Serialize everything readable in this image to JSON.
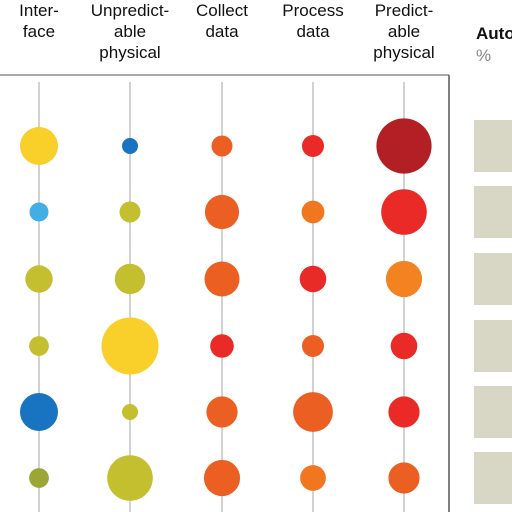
{
  "chart_data": {
    "type": "bubble-matrix",
    "columns": [
      {
        "label": "Inter-\nface"
      },
      {
        "label": "Unpredict-\nable\nphysical"
      },
      {
        "label": "Collect\ndata"
      },
      {
        "label": "Process\ndata"
      },
      {
        "label": "Predict-\nable\nphysical"
      }
    ],
    "rows": [
      {
        "size": [
          1.0,
          0.42,
          0.55,
          0.58,
          1.45
        ],
        "color": [
          "#F9CF2A",
          "#1874C1",
          "#EC5F22",
          "#E92A26",
          "#B22026"
        ]
      },
      {
        "size": [
          0.5,
          0.55,
          0.9,
          0.6,
          1.2
        ],
        "color": [
          "#41AEE4",
          "#C3BF2E",
          "#EC5F22",
          "#F0771F",
          "#E92A26"
        ]
      },
      {
        "size": [
          0.72,
          0.8,
          0.92,
          0.7,
          0.95
        ],
        "color": [
          "#C3BF2E",
          "#C3BF2E",
          "#EC5F22",
          "#E92A26",
          "#F38220"
        ]
      },
      {
        "size": [
          0.52,
          1.5,
          0.62,
          0.58,
          0.7
        ],
        "color": [
          "#C3BF2E",
          "#F9CF2A",
          "#E92A26",
          "#EC5F22",
          "#E92A26"
        ]
      },
      {
        "size": [
          1.0,
          0.42,
          0.82,
          1.05,
          0.82
        ],
        "color": [
          "#1874C1",
          "#C3BF2E",
          "#EC5F22",
          "#EC5F22",
          "#E92A26"
        ]
      },
      {
        "size": [
          0.52,
          1.2,
          0.95,
          0.68,
          0.82
        ],
        "color": [
          "#9AA734",
          "#C3BF2E",
          "#EC5F22",
          "#F0771F",
          "#EC5F22"
        ]
      }
    ],
    "right_panel": {
      "title": "Auto",
      "subtitle": "%",
      "bar_color": "#D8D6C4",
      "bars": 6
    }
  }
}
